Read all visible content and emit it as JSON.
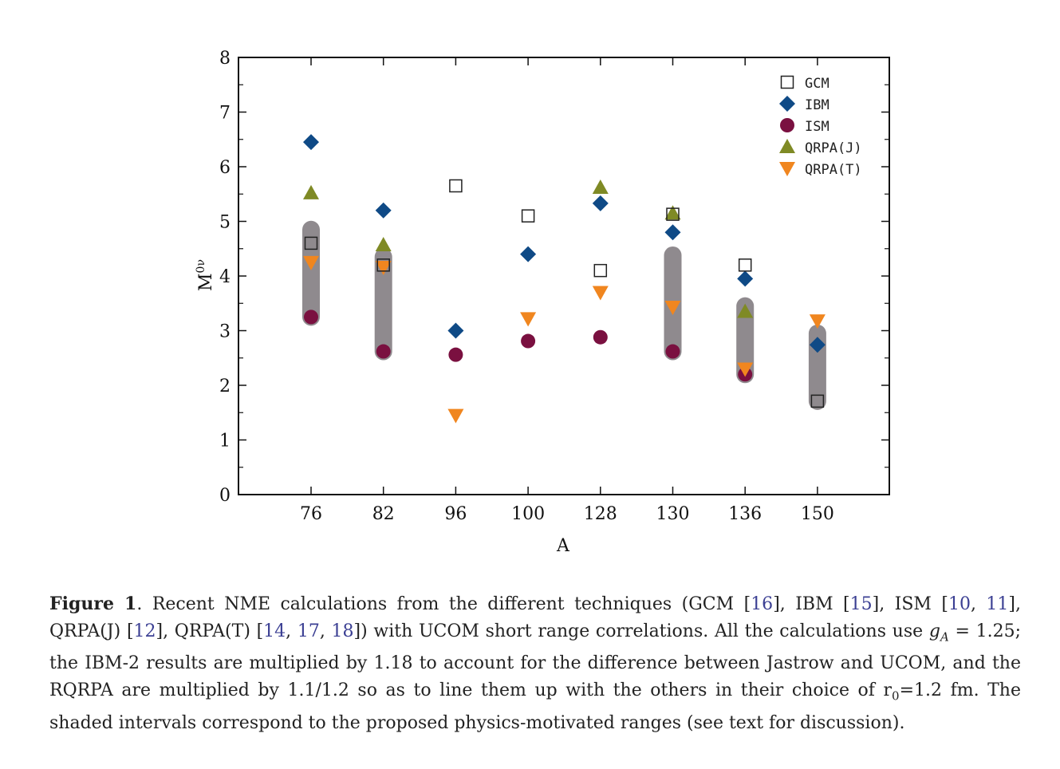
{
  "chart_data": {
    "type": "scatter",
    "xlabel": "A",
    "ylabel": "M",
    "ylabel_sup": "0ν",
    "categories": [
      "76",
      "82",
      "96",
      "100",
      "128",
      "130",
      "136",
      "150"
    ],
    "ylim": [
      0,
      8
    ],
    "yticks": [
      0,
      1,
      2,
      3,
      4,
      5,
      6,
      7,
      8
    ],
    "legend_position": "top-right",
    "ranges": [
      {
        "category": "76",
        "low": 3.25,
        "high": 4.85
      },
      {
        "category": "82",
        "low": 2.62,
        "high": 4.35
      },
      {
        "category": "130",
        "low": 2.62,
        "high": 4.38
      },
      {
        "category": "136",
        "low": 2.2,
        "high": 3.45
      },
      {
        "category": "150",
        "low": 1.71,
        "high": 2.95
      }
    ],
    "series": [
      {
        "name": "GCM",
        "marker": "square",
        "color": "#222222",
        "points": [
          [
            "76",
            4.6
          ],
          [
            "82",
            4.2
          ],
          [
            "96",
            5.65
          ],
          [
            "100",
            5.1
          ],
          [
            "128",
            4.1
          ],
          [
            "130",
            5.13
          ],
          [
            "136",
            4.2
          ],
          [
            "150",
            1.71
          ]
        ]
      },
      {
        "name": "IBM",
        "marker": "diamond",
        "color": "#0f4a86",
        "points": [
          [
            "76",
            6.45
          ],
          [
            "82",
            5.2
          ],
          [
            "96",
            3.0
          ],
          [
            "100",
            4.4
          ],
          [
            "128",
            5.33
          ],
          [
            "130",
            4.8
          ],
          [
            "136",
            3.95
          ],
          [
            "150",
            2.74
          ]
        ]
      },
      {
        "name": "ISM",
        "marker": "circle",
        "color": "#7a1040",
        "points": [
          [
            "76",
            3.25
          ],
          [
            "82",
            2.62
          ],
          [
            "96",
            2.56
          ],
          [
            "100",
            2.81
          ],
          [
            "128",
            2.88
          ],
          [
            "130",
            2.62
          ],
          [
            "136",
            2.2
          ]
        ]
      },
      {
        "name": "QRPA(J)",
        "marker": "triangle-up",
        "color": "#7f8a25",
        "points": [
          [
            "76",
            5.52
          ],
          [
            "82",
            4.57
          ],
          [
            "128",
            5.62
          ],
          [
            "130",
            5.15
          ],
          [
            "136",
            3.35
          ]
        ]
      },
      {
        "name": "QRPA(T)",
        "marker": "triangle-down",
        "color": "#f0861f",
        "points": [
          [
            "76",
            4.25
          ],
          [
            "82",
            4.16
          ],
          [
            "96",
            1.45
          ],
          [
            "100",
            3.22
          ],
          [
            "128",
            3.7
          ],
          [
            "130",
            3.43
          ],
          [
            "136",
            2.3
          ],
          [
            "150",
            3.18
          ]
        ]
      }
    ]
  },
  "caption": {
    "figure_label": "Figure 1",
    "p1": ". Recent NME calculations from the different techniques (GCM [",
    "r16": "16",
    "p2": "], IBM [",
    "r15": "15",
    "p3": "], ISM [",
    "r10": "10",
    "p4": ", ",
    "r11": "11",
    "p5": "], QRPA(J) [",
    "r12": "12",
    "p6": "], QRPA(T) [",
    "r14": "14",
    "p7": ", ",
    "r17": "17",
    "p8": ", ",
    "r18": "18",
    "p9": "]) with UCOM short range correlations. All the calculations use ",
    "g_symbol": "g",
    "g_sub": "A",
    "p10": " = 1.25; the IBM-2 results are multiplied by 1.18 to account for the difference between Jastrow and UCOM, and the RQRPA are multiplied by 1.1/1.2 so as to line them up with the others in their choice of r",
    "r_sub": "0",
    "p11": "=1.2 fm. The shaded intervals correspond to the proposed physics-motivated ranges (see text for discussion)."
  }
}
